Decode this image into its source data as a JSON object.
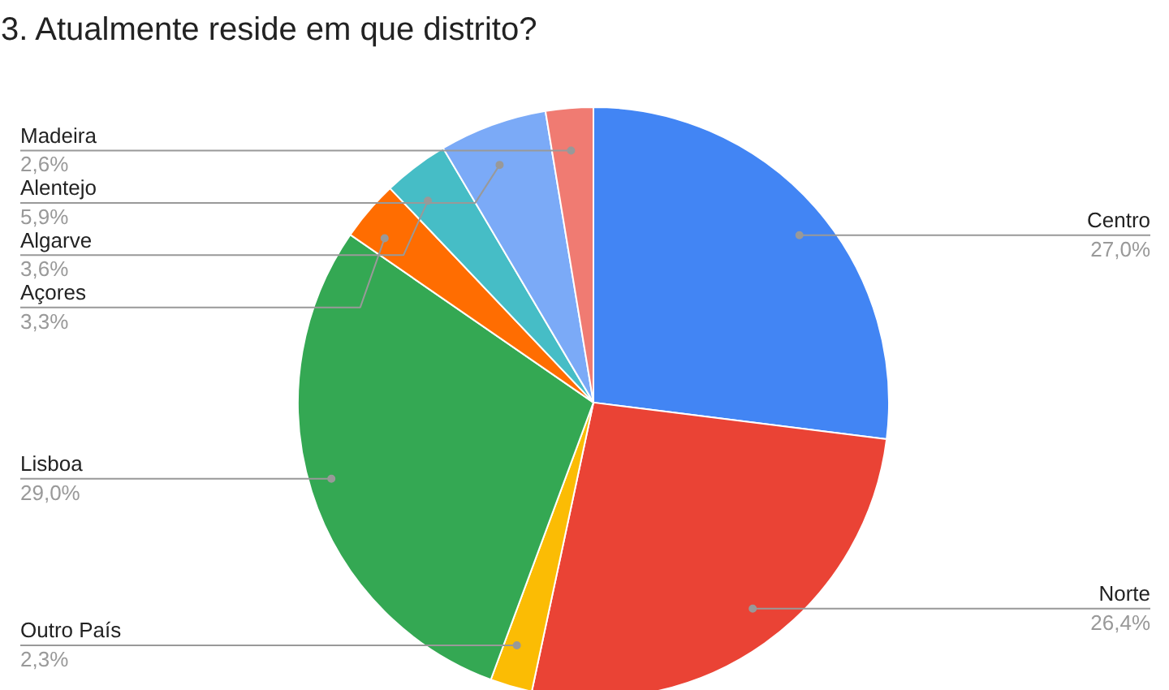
{
  "chart_data": {
    "type": "pie",
    "title": "3. Atualmente reside em que distrito?",
    "categories": [
      "Centro",
      "Norte",
      "Outro País",
      "Lisboa",
      "Açores",
      "Algarve",
      "Alentejo",
      "Madeira"
    ],
    "values": [
      27.0,
      26.4,
      2.3,
      29.0,
      3.3,
      3.6,
      5.9,
      2.6
    ],
    "colors": [
      "#4285f4",
      "#ea4335",
      "#fbbc04",
      "#34a853",
      "#ff6d01",
      "#46bdc6",
      "#7baaf7",
      "#f07b72"
    ],
    "value_labels": [
      "27,0%",
      "26,4%",
      "2,3%",
      "29,0%",
      "3,3%",
      "3,6%",
      "5,9%",
      "2,6%"
    ]
  }
}
